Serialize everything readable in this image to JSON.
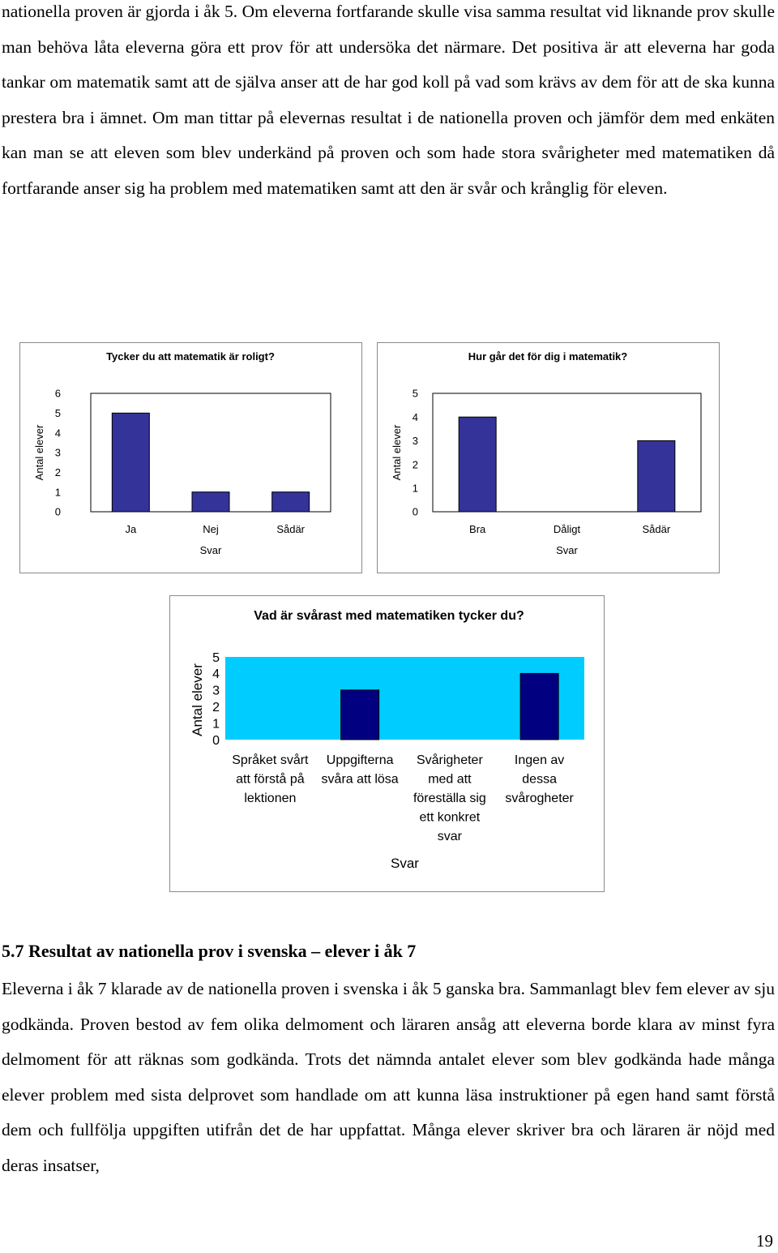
{
  "document": {
    "paragraph_top": "nationella proven är gjorda i åk 5. Om eleverna fortfarande skulle visa samma resultat vid liknande prov skulle man behöva låta eleverna göra ett prov för att undersöka det närmare. Det positiva är att eleverna har goda tankar om matematik samt att de själva anser att de har god koll på vad som krävs av dem för att de ska kunna prestera bra i ämnet. Om man tittar på elevernas resultat i de nationella proven och jämför dem med enkäten kan man se att eleven som blev underkänd på proven och som hade stora svårigheter med matematiken då fortfarande anser sig ha problem med matematiken samt att den är svår och krånglig för eleven.",
    "section_heading": "5.7 Resultat av nationella prov i svenska – elever i åk 7",
    "paragraph_bottom": "Eleverna i åk 7 klarade av de nationella proven i svenska i åk 5 ganska bra. Sammanlagt blev fem elever av sju godkända. Proven bestod av fem olika delmoment och läraren ansåg att eleverna borde klara av minst fyra delmoment för att räknas som godkända. Trots det nämnda antalet elever som blev godkända hade många elever problem med sista delprovet som handlade om att kunna läsa instruktioner på egen hand samt förstå dem och fullfölja uppgiften utifrån det de har uppfattat. Många elever skriver bra och läraren är nöjd med deras insatser,",
    "page_number": "19"
  },
  "chart_data": [
    {
      "type": "bar",
      "title": "Tycker du att matematik är roligt?",
      "xlabel": "Svar",
      "ylabel": "Antal elever",
      "categories": [
        "Ja",
        "Nej",
        "Sådär"
      ],
      "values": [
        5,
        1,
        1
      ],
      "ylim": [
        0,
        6
      ],
      "yticks": [
        "0",
        "1",
        "2",
        "3",
        "4",
        "5",
        "6"
      ],
      "grid": false,
      "plot_background": "#ffffff",
      "bar_color": "#333399"
    },
    {
      "type": "bar",
      "title": "Hur går det för dig i matematik?",
      "xlabel": "Svar",
      "ylabel": "Antal elever",
      "categories": [
        "Bra",
        "Dåligt",
        "Sådär"
      ],
      "values": [
        4,
        0,
        3
      ],
      "ylim": [
        0,
        5
      ],
      "yticks": [
        "0",
        "1",
        "2",
        "3",
        "4",
        "5"
      ],
      "grid": false,
      "plot_background": "#ffffff",
      "bar_color": "#333399"
    },
    {
      "type": "bar",
      "title": "Vad är svårast med matematiken tycker du?",
      "xlabel": "Svar",
      "ylabel": "Antal elever",
      "categories": [
        [
          "Språket svårt",
          "att förstå på",
          "lektionen"
        ],
        [
          "Uppgifterna",
          "svåra att lösa"
        ],
        [
          "Svårigheter",
          "med att",
          "föreställa sig",
          "ett konkret",
          "svar"
        ],
        [
          "Ingen av",
          "dessa",
          "svårogheter"
        ]
      ],
      "values": [
        0,
        3,
        0,
        4
      ],
      "ylim": [
        0,
        5
      ],
      "yticks": [
        "0",
        "1",
        "2",
        "3",
        "4",
        "5"
      ],
      "grid": false,
      "plot_background": "#00ccff",
      "bar_color": "#000080"
    }
  ]
}
